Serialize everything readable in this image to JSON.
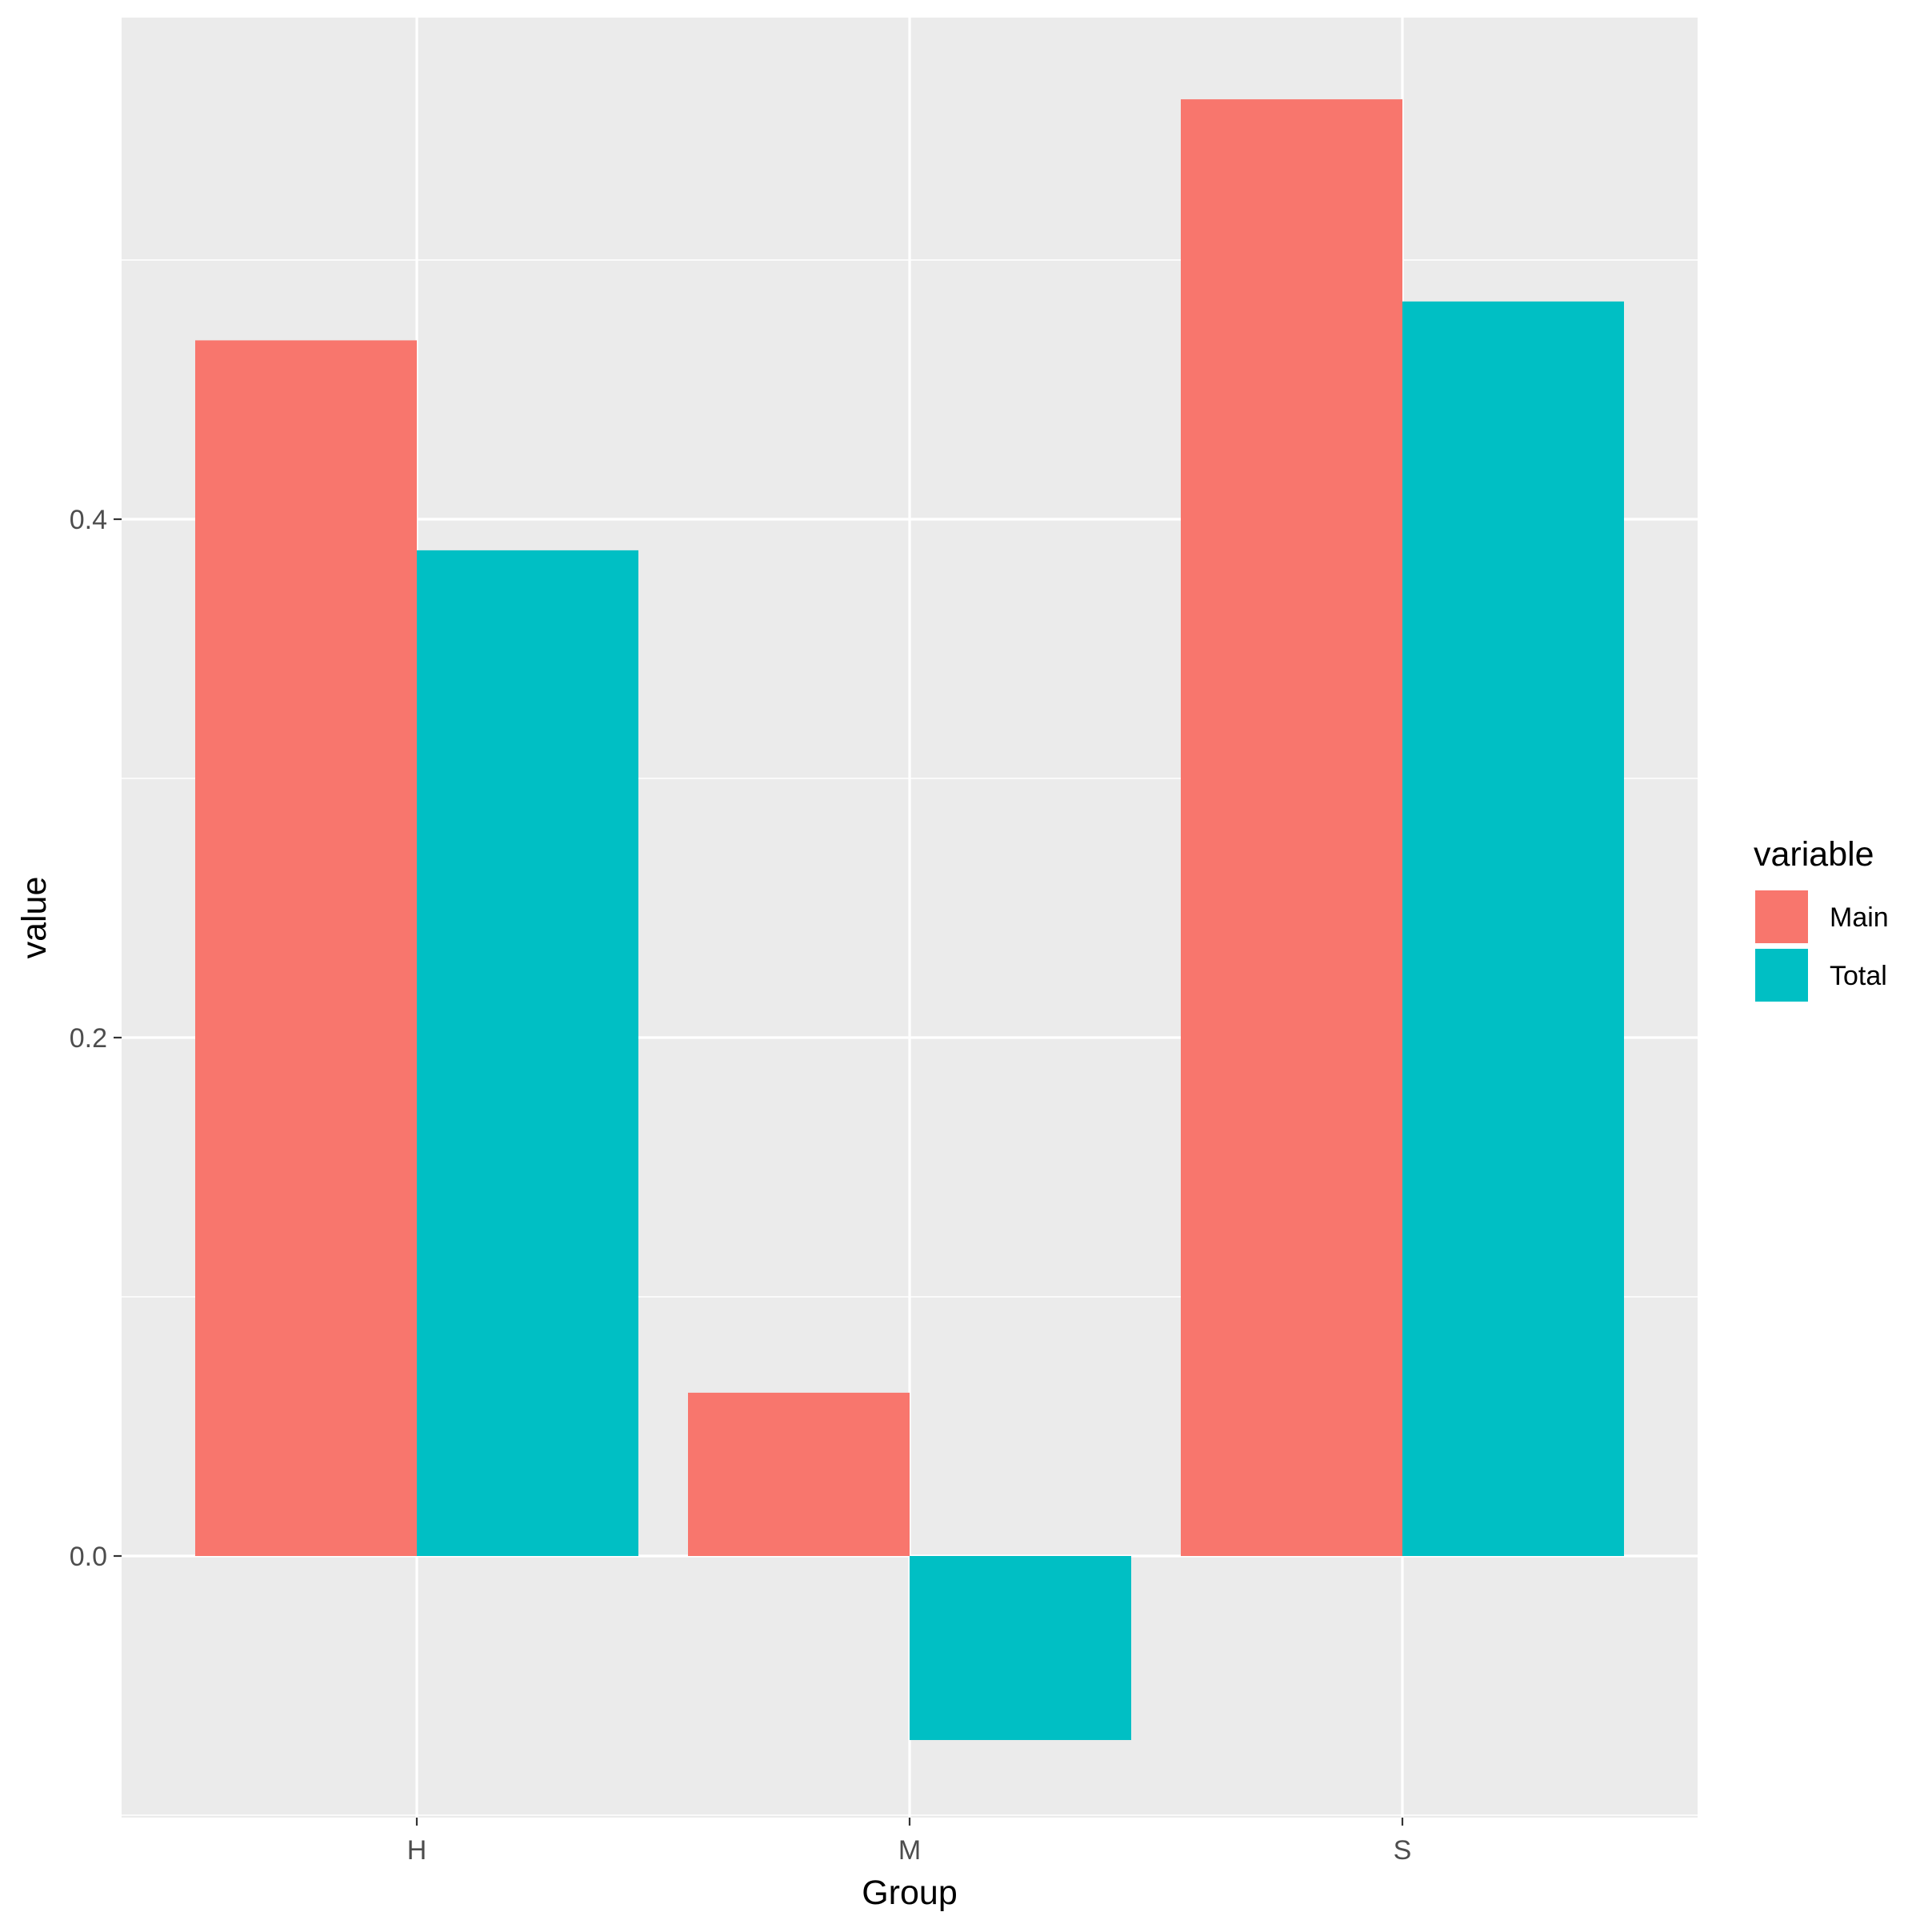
{
  "chart_data": {
    "type": "bar",
    "title": "",
    "xlabel": "Group",
    "ylabel": "value",
    "categories": [
      "H",
      "M",
      "S"
    ],
    "series": [
      {
        "name": "Main",
        "color": "#F8766D",
        "values": [
          0.469,
          0.063,
          0.562
        ]
      },
      {
        "name": "Total",
        "color": "#00BFC4",
        "values": [
          0.388,
          -0.071,
          0.484
        ]
      }
    ],
    "ylim": [
      -0.1,
      0.6
    ],
    "yticks": [
      0.0,
      0.2,
      0.4
    ],
    "ytick_labels": [
      "0.0",
      "0.2",
      "0.4"
    ],
    "grid": true,
    "panel_background": "#EBEBEB",
    "legend": {
      "title": "variable",
      "position": "right"
    }
  }
}
